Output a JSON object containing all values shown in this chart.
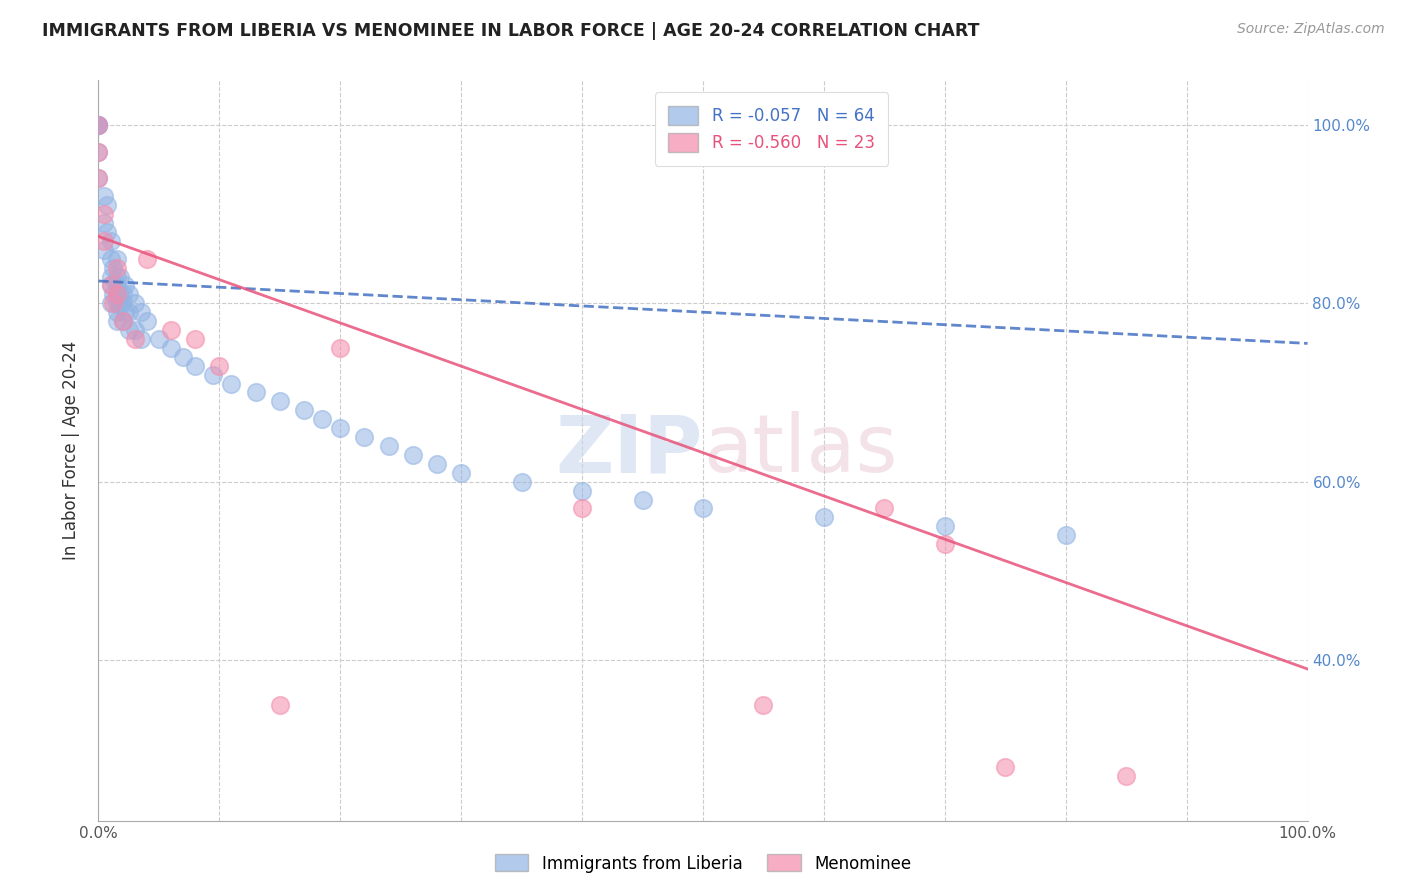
{
  "title": "IMMIGRANTS FROM LIBERIA VS MENOMINEE IN LABOR FORCE | AGE 20-24 CORRELATION CHART",
  "source": "Source: ZipAtlas.com",
  "ylabel": "In Labor Force | Age 20-24",
  "legend_r_blue": "-0.057",
  "legend_n_blue": "64",
  "legend_r_pink": "-0.560",
  "legend_n_pink": "23",
  "legend_label_blue": "Immigrants from Liberia",
  "legend_label_pink": "Menominee",
  "blue_color": "#92B4E3",
  "pink_color": "#F48BAB",
  "blue_line_color": "#4472C4",
  "pink_line_color": "#E8527A",
  "watermark_zip": "ZIP",
  "watermark_atlas": "atlas",
  "xlim": [
    0.0,
    1.0
  ],
  "ylim": [
    0.22,
    1.05
  ],
  "blue_trend_y_start": 0.825,
  "blue_trend_y_end": 0.755,
  "pink_trend_y_start": 0.875,
  "pink_trend_y_end": 0.39,
  "y_ticks": [
    0.4,
    0.6,
    0.8,
    1.0
  ],
  "y_tick_labels": [
    "40.0%",
    "60.0%",
    "80.0%",
    "100.0%"
  ],
  "blue_x": [
    0.0,
    0.0,
    0.0,
    0.0,
    0.0,
    0.0,
    0.005,
    0.005,
    0.005,
    0.007,
    0.007,
    0.01,
    0.01,
    0.01,
    0.01,
    0.01,
    0.012,
    0.012,
    0.015,
    0.015,
    0.015,
    0.015,
    0.015,
    0.015,
    0.015,
    0.018,
    0.018,
    0.018,
    0.02,
    0.02,
    0.02,
    0.022,
    0.022,
    0.025,
    0.025,
    0.025,
    0.03,
    0.03,
    0.035,
    0.035,
    0.04,
    0.05,
    0.06,
    0.07,
    0.08,
    0.095,
    0.11,
    0.13,
    0.15,
    0.17,
    0.185,
    0.2,
    0.22,
    0.24,
    0.26,
    0.28,
    0.3,
    0.35,
    0.4,
    0.45,
    0.5,
    0.6,
    0.7,
    0.8
  ],
  "blue_y": [
    1.0,
    1.0,
    1.0,
    1.0,
    0.97,
    0.94,
    0.92,
    0.89,
    0.86,
    0.91,
    0.88,
    0.87,
    0.85,
    0.83,
    0.82,
    0.8,
    0.84,
    0.81,
    0.85,
    0.83,
    0.82,
    0.81,
    0.8,
    0.79,
    0.78,
    0.83,
    0.81,
    0.8,
    0.81,
    0.8,
    0.78,
    0.82,
    0.79,
    0.81,
    0.79,
    0.77,
    0.8,
    0.77,
    0.79,
    0.76,
    0.78,
    0.76,
    0.75,
    0.74,
    0.73,
    0.72,
    0.71,
    0.7,
    0.69,
    0.68,
    0.67,
    0.66,
    0.65,
    0.64,
    0.63,
    0.62,
    0.61,
    0.6,
    0.59,
    0.58,
    0.57,
    0.56,
    0.55,
    0.54
  ],
  "pink_x": [
    0.0,
    0.0,
    0.0,
    0.005,
    0.005,
    0.01,
    0.012,
    0.015,
    0.015,
    0.02,
    0.03,
    0.04,
    0.06,
    0.08,
    0.1,
    0.15,
    0.2,
    0.4,
    0.55,
    0.65,
    0.7,
    0.75,
    0.85
  ],
  "pink_y": [
    1.0,
    0.97,
    0.94,
    0.9,
    0.87,
    0.82,
    0.8,
    0.84,
    0.81,
    0.78,
    0.76,
    0.85,
    0.77,
    0.76,
    0.73,
    0.35,
    0.75,
    0.57,
    0.35,
    0.57,
    0.53,
    0.28,
    0.27
  ]
}
